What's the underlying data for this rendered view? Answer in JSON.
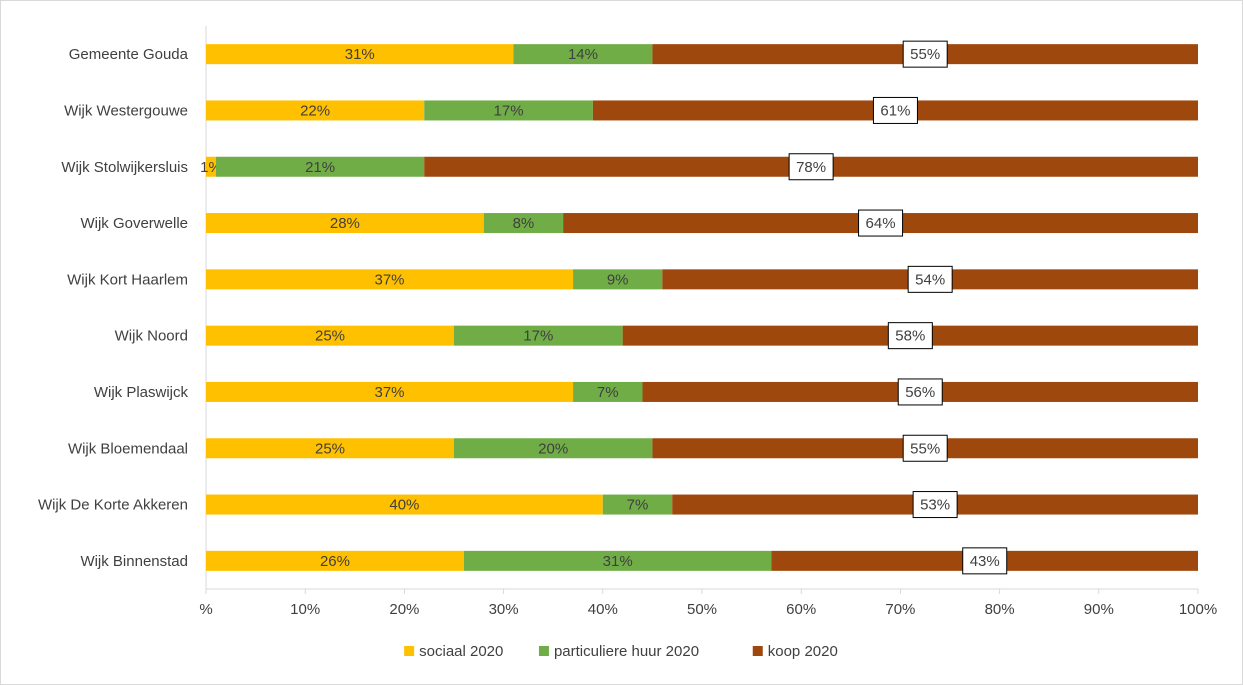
{
  "chart_data": {
    "type": "bar",
    "orientation": "horizontal",
    "stacked": "percent",
    "title": "",
    "xlabel": "",
    "ylabel": "",
    "categories": [
      "Gemeente Gouda",
      "Wijk Westergouwe",
      "Wijk Stolwijkersluis",
      "Wijk Goverwelle",
      "Wijk Kort Haarlem",
      "Wijk Noord",
      "Wijk Plaswijck",
      "Wijk Bloemendaal",
      "Wijk De Korte Akkeren",
      "Wijk Binnenstad"
    ],
    "series": [
      {
        "name": "sociaal 2020",
        "color": "#FFC000",
        "values": [
          31,
          22,
          1,
          28,
          37,
          25,
          37,
          25,
          40,
          26
        ],
        "labels": [
          "31%",
          "22%",
          "1%",
          "28%",
          "37%",
          "25%",
          "37%",
          "25%",
          "40%",
          "26%"
        ]
      },
      {
        "name": "particuliere huur 2020",
        "color": "#70AD47",
        "values": [
          14,
          17,
          21,
          8,
          9,
          17,
          7,
          20,
          7,
          31
        ],
        "labels": [
          "14%",
          "17%",
          "21%",
          "8%",
          "9%",
          "17%",
          "7%",
          "20%",
          "7%",
          "31%"
        ]
      },
      {
        "name": "koop 2020",
        "color": "#9E480E",
        "values": [
          55,
          61,
          78,
          64,
          54,
          58,
          56,
          55,
          53,
          43
        ],
        "labels": [
          "55%",
          "61%",
          "78%",
          "64%",
          "54%",
          "58%",
          "56%",
          "55%",
          "53%",
          "43%"
        ]
      }
    ],
    "xlim": [
      0,
      100
    ],
    "x_ticks": [
      "%",
      "10%",
      "20%",
      "30%",
      "40%",
      "50%",
      "60%",
      "70%",
      "80%",
      "90%",
      "100%"
    ],
    "grid": true,
    "legend_position": "bottom",
    "colors": {
      "axis": "#d9d9d9",
      "text": "#404040",
      "label_box_border": "#000000",
      "label_box_fill": "#ffffff"
    }
  }
}
